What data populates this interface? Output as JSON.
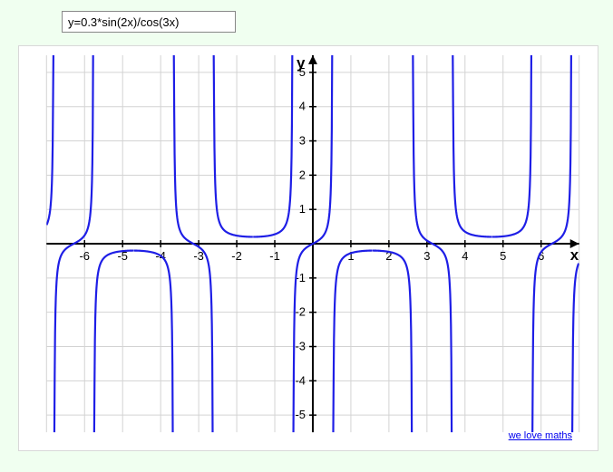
{
  "input": {
    "value": "y=0.3*sin(2x)/cos(3x)"
  },
  "chart": {
    "type": "line",
    "background_color": "#ffffff",
    "page_background": "#f0fff0",
    "grid_color": "#d3d3d3",
    "axis_color": "#000000",
    "curve_color": "#1e1ee6",
    "curve_width": 2.2,
    "axis_width": 2,
    "xlim": [
      -7,
      7
    ],
    "ylim": [
      -5.5,
      5.5
    ],
    "xtick_step": 1,
    "ytick_step": 1,
    "xticks": [
      -6,
      -5,
      -4,
      -3,
      -2,
      -1,
      1,
      2,
      3,
      4,
      5,
      6
    ],
    "yticks": [
      -5,
      -4,
      -3,
      -2,
      -1,
      1,
      2,
      3,
      4,
      5
    ],
    "tick_fontsize": 13,
    "tick_font": "Arial",
    "tick_color": "#000000",
    "xlabel": "x",
    "ylabel": "y",
    "label_fontsize": 17,
    "label_fontweight": "bold",
    "formula": "0.3*sin(2*x)/cos(3*x)",
    "asymptotes_x": [
      -6.8068,
      -5.7596,
      -4.7124,
      -3.6652,
      -2.618,
      -1.5708,
      -0.5236,
      0.5236,
      1.5708,
      2.618,
      3.6652,
      4.7124,
      5.7596,
      6.8068
    ],
    "sample_step": 0.01
  },
  "footer": {
    "link_text": "we love maths",
    "link_href": "#"
  }
}
